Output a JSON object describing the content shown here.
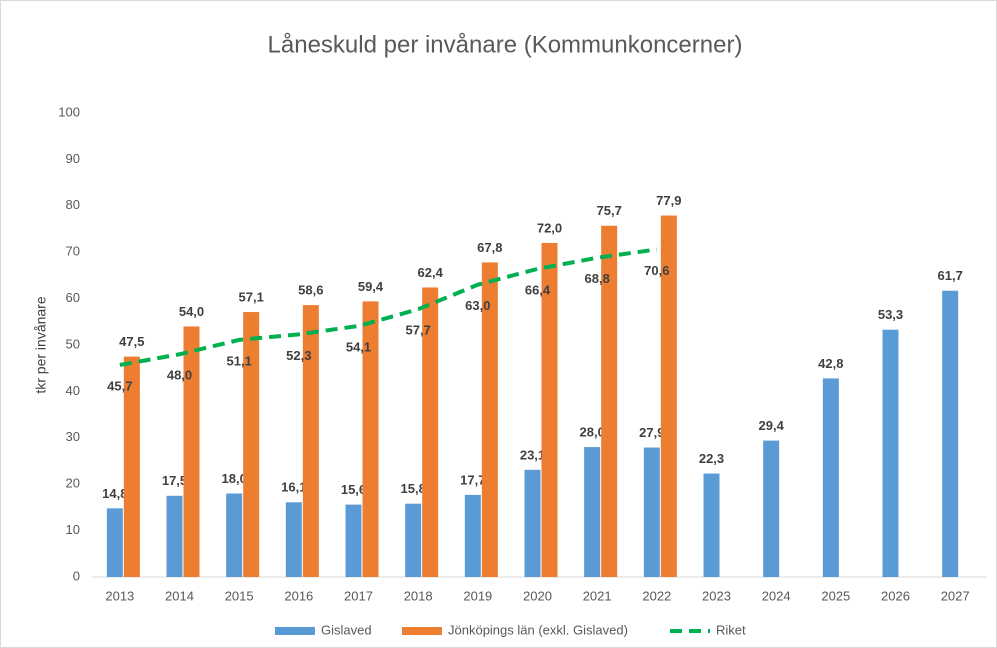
{
  "chart_data": {
    "type": "bar",
    "title": "Låneskuld per invånare (Kommunkoncerner)",
    "y_label": "tkr per invånare",
    "categories": [
      "2013",
      "2014",
      "2015",
      "2016",
      "2017",
      "2018",
      "2019",
      "2020",
      "2021",
      "2022",
      "2023",
      "2024",
      "2025",
      "2026",
      "2027"
    ],
    "series": [
      {
        "name": "Gislaved",
        "type": "bar",
        "color": "#5b9bd5",
        "values": [
          14.8,
          17.5,
          18.0,
          16.1,
          15.6,
          15.8,
          17.7,
          23.1,
          28.0,
          27.9,
          22.3,
          29.4,
          42.8,
          53.3,
          61.7
        ],
        "value_labels": [
          "14,8",
          "17,5",
          "18,0",
          "16,1",
          "15,6",
          "15,8",
          "17,7",
          "23,1",
          "28,0",
          "27,9",
          "22,3",
          "29,4",
          "42,8",
          "53,3",
          "61,7"
        ]
      },
      {
        "name": "Jönköpings län (exkl. Gislaved)",
        "type": "bar",
        "color": "#ed7d31",
        "values": [
          47.5,
          54.0,
          57.1,
          58.6,
          59.4,
          62.4,
          67.8,
          72.0,
          75.7,
          77.9,
          null,
          null,
          null,
          null,
          null
        ],
        "value_labels": [
          "47,5",
          "54,0",
          "57,1",
          "58,6",
          "59,4",
          "62,4",
          "67,8",
          "72,0",
          "75,7",
          "77,9",
          null,
          null,
          null,
          null,
          null
        ]
      },
      {
        "name": "Riket",
        "type": "line",
        "color": "#00b050",
        "dashed": true,
        "values": [
          45.7,
          48.0,
          51.1,
          52.3,
          54.1,
          57.7,
          63.0,
          66.4,
          68.8,
          70.6,
          null,
          null,
          null,
          null,
          null
        ],
        "value_labels": [
          "45,7",
          "48,0",
          "51,1",
          "52,3",
          "54,1",
          "57,7",
          "63,0",
          "66,4",
          "68,8",
          "70,6",
          null,
          null,
          null,
          null,
          null
        ]
      }
    ],
    "ylim": [
      0,
      100
    ],
    "yticks": [
      0,
      10,
      20,
      30,
      40,
      50,
      60,
      70,
      80,
      90,
      100
    ],
    "grid": false,
    "legend": "bottom"
  }
}
